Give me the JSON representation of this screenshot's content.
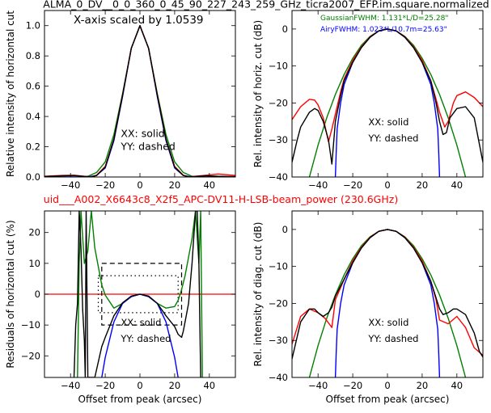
{
  "figure": {
    "title": "ALMA_0_DV__0_0_360_0_45_90_227_243_259_GHz_ticra2007_EFP.im.square.normalized",
    "subtitle": "uid___A002_X6643c8_X2f5_APC-DV11-H-LSB-beam_power (230.6GHz)",
    "colors": {
      "red": "#ff0000",
      "black": "#000000",
      "green": "#008000",
      "blue": "#0000ff"
    }
  },
  "chart_data": [
    {
      "type": "line",
      "panel": "top-left",
      "annotation": "X-axis scaled by 1.0539",
      "xlabel": "",
      "ylabel": "Relative intensity of horizontal cut",
      "xlim": [
        -55,
        55
      ],
      "ylim": [
        0,
        1.1
      ],
      "xticks": [
        -40,
        -20,
        0,
        20,
        40
      ],
      "xtick_labels": [
        "−40",
        "−20",
        "0",
        "20",
        "40"
      ],
      "yticks": [
        0,
        0.2,
        0.4,
        0.6,
        0.8,
        1.0
      ],
      "ytick_labels": [
        "0.0",
        "0.2",
        "0.4",
        "0.6",
        "0.8",
        "1.0"
      ],
      "legend_text": [
        "XX: solid",
        "YY: dashed"
      ],
      "series": [
        {
          "color": "#008000",
          "x": [
            -55,
            -35,
            -30,
            -25,
            -20,
            -15,
            -10,
            -5,
            0,
            5,
            10,
            15,
            20,
            25,
            30,
            35,
            55
          ],
          "y": [
            0,
            0,
            0.005,
            0.03,
            0.1,
            0.28,
            0.55,
            0.85,
            1.0,
            0.85,
            0.55,
            0.28,
            0.1,
            0.03,
            0.005,
            0,
            0
          ]
        },
        {
          "color": "#0000ff",
          "x": [
            -55,
            -30,
            -25,
            -20,
            -15,
            -10,
            -5,
            0,
            5,
            10,
            15,
            20,
            25,
            30,
            55
          ],
          "y": [
            0,
            0,
            0.01,
            0.06,
            0.24,
            0.53,
            0.85,
            1.0,
            0.85,
            0.53,
            0.24,
            0.06,
            0.01,
            0,
            0
          ]
        },
        {
          "color": "#ff0000",
          "x": [
            -55,
            -45,
            -38,
            -32,
            -28,
            -25,
            -20,
            -15,
            -10,
            -5,
            0,
            5,
            10,
            15,
            20,
            25,
            28,
            32,
            38,
            45,
            55
          ],
          "y": [
            0.005,
            0.01,
            0.012,
            0.005,
            0.001,
            0.012,
            0.07,
            0.25,
            0.54,
            0.85,
            1.0,
            0.85,
            0.54,
            0.25,
            0.07,
            0.012,
            0.001,
            0.005,
            0.012,
            0.02,
            0.01
          ]
        },
        {
          "color": "#000000",
          "x": [
            -55,
            -45,
            -38,
            -32,
            -28,
            -25,
            -20,
            -15,
            -10,
            -5,
            0,
            5,
            10,
            15,
            20,
            25,
            28,
            32,
            38,
            45,
            55
          ],
          "y": [
            0.003,
            0.008,
            0.01,
            0.004,
            0.001,
            0.01,
            0.065,
            0.25,
            0.54,
            0.85,
            1.0,
            0.85,
            0.54,
            0.25,
            0.065,
            0.01,
            0.001,
            0.004,
            0.008,
            0.005,
            0.003
          ]
        }
      ]
    },
    {
      "type": "line",
      "panel": "top-right",
      "xlabel": "",
      "ylabel": "Rel. intensity of horiz. cut (dB)",
      "xlim": [
        -55,
        55
      ],
      "ylim": [
        -40,
        5
      ],
      "xticks": [
        -40,
        -20,
        0,
        20,
        40
      ],
      "xtick_labels": [
        "−40",
        "−20",
        "0",
        "20",
        "40"
      ],
      "yticks": [
        -40,
        -30,
        -20,
        -10,
        0
      ],
      "ytick_labels": [
        "−40",
        "−30",
        "−20",
        "−10",
        "0"
      ],
      "legend_text": [
        "XX: solid",
        "YY: dashed"
      ],
      "fwhm_notes": [
        {
          "text": "GaussianFWHM: 1.131*L/D=25.28\"",
          "color": "#008000"
        },
        {
          "text": "AiryFWHM: 1.023*L/10.7m=25.63\"",
          "color": "#0000ff"
        }
      ],
      "series": [
        {
          "color": "#008000",
          "x": [
            -45,
            -40,
            -35,
            -30,
            -25,
            -20,
            -15,
            -10,
            -5,
            0,
            5,
            10,
            15,
            20,
            25,
            30,
            35,
            40,
            45
          ],
          "y": [
            -40,
            -31.4,
            -24,
            -17.7,
            -12.3,
            -7.9,
            -4.4,
            -2,
            -0.5,
            0,
            -0.5,
            -2,
            -4.4,
            -7.9,
            -12.3,
            -17.7,
            -24,
            -31.4,
            -40
          ]
        },
        {
          "color": "#0000ff",
          "x": [
            -30,
            -29.5,
            -29,
            -27,
            -25,
            -20,
            -15,
            -10,
            -5,
            0,
            5,
            10,
            15,
            20,
            25,
            27,
            29,
            29.5,
            30
          ],
          "y": [
            -40,
            -33,
            -27,
            -20,
            -15,
            -9,
            -5,
            -2.2,
            -0.5,
            0,
            -0.5,
            -2.2,
            -5,
            -9,
            -15,
            -20,
            -27,
            -33,
            -40
          ]
        },
        {
          "color": "#ff0000",
          "x": [
            -55,
            -50,
            -45,
            -42,
            -40,
            -37,
            -34,
            -32,
            -30,
            -27,
            -25,
            -20,
            -15,
            -10,
            -5,
            0,
            5,
            10,
            15,
            20,
            25,
            28,
            30,
            33,
            35,
            38,
            40,
            45,
            50,
            55
          ],
          "y": [
            -24.5,
            -21,
            -19,
            -19.2,
            -20.5,
            -24,
            -30.5,
            -27,
            -23,
            -17,
            -13.5,
            -8.5,
            -4.8,
            -2.1,
            -0.5,
            0,
            -0.5,
            -2.1,
            -4.8,
            -8.5,
            -14,
            -19,
            -22.5,
            -26.5,
            -25,
            -20,
            -18,
            -17,
            -18.5,
            -21
          ]
        },
        {
          "color": "#000000",
          "x": [
            -55,
            -52,
            -50,
            -45,
            -42,
            -40,
            -37,
            -34,
            -32,
            -30,
            -27,
            -25,
            -20,
            -15,
            -10,
            -5,
            0,
            5,
            10,
            15,
            20,
            25,
            28,
            30,
            32,
            34,
            36,
            40,
            45,
            50,
            55
          ],
          "y": [
            -36,
            -30,
            -26.5,
            -22.5,
            -21.5,
            -22,
            -25,
            -30,
            -36.5,
            -25,
            -18,
            -14,
            -9,
            -5,
            -2.2,
            -0.5,
            0,
            -0.5,
            -2.2,
            -5,
            -9,
            -14,
            -20,
            -25,
            -28.5,
            -28,
            -24,
            -21.5,
            -21,
            -24,
            -36
          ]
        }
      ]
    },
    {
      "type": "line",
      "panel": "bottom-left",
      "xlabel": "Offset from peak (arcsec)",
      "ylabel": "Residuals of horizontal cut (%)",
      "xlim": [
        -55,
        55
      ],
      "ylim": [
        -27,
        27
      ],
      "xticks": [
        -40,
        -20,
        0,
        20,
        40
      ],
      "xtick_labels": [
        "−40",
        "−20",
        "0",
        "20",
        "40"
      ],
      "yticks": [
        -20,
        -10,
        0,
        10,
        20
      ],
      "ytick_labels": [
        "−20",
        "−10",
        "0",
        "10",
        "20"
      ],
      "legend_text": [
        "XX: solid",
        "YY: dashed"
      ],
      "zero_line_color": "#ff0000",
      "box_dashed": {
        "x": [
          -22,
          24
        ],
        "y": [
          -10,
          10
        ]
      },
      "box_dotted": {
        "x": [
          -24,
          22
        ],
        "y": [
          -6,
          6
        ]
      },
      "series": [
        {
          "color": "#008000",
          "x": [
            -36,
            -35,
            -34,
            -32,
            -30,
            -28,
            -26,
            -24,
            -22,
            -20,
            -15,
            -10,
            -5,
            0,
            5,
            10,
            15,
            20,
            22,
            24,
            26,
            28,
            30,
            32,
            34,
            35,
            36
          ],
          "y": [
            -27,
            10,
            27,
            10,
            14,
            27,
            15,
            9,
            3,
            -0.3,
            -4.5,
            -3,
            -0.8,
            0,
            -0.8,
            -3,
            -4.5,
            -4,
            -2,
            1.5,
            6,
            12,
            18,
            27,
            10,
            27,
            -27
          ]
        },
        {
          "color": "#0000ff",
          "x": [
            -22,
            -20,
            -15,
            -10,
            -5,
            0,
            5,
            10,
            15,
            20,
            22
          ],
          "y": [
            -27,
            -20.5,
            -9,
            -3,
            -0.8,
            0,
            -0.8,
            -3,
            -9,
            -20.5,
            -27
          ]
        },
        {
          "color": "#000000",
          "x": [
            -38,
            -37,
            -36,
            -35,
            -34,
            -33,
            -32,
            -31.5,
            -31,
            -30,
            -26,
            -22,
            -20,
            -15,
            -10,
            -5,
            0,
            5,
            10,
            15,
            20,
            22,
            24,
            25,
            26,
            28,
            30,
            32,
            33,
            34,
            35
          ],
          "y": [
            -27,
            -10,
            -3,
            27,
            15,
            -5,
            -15,
            -27,
            27,
            -27,
            -27,
            -17,
            -14,
            -7,
            -2.8,
            -0.6,
            0,
            -0.6,
            -3,
            -7,
            -10.5,
            -13,
            -14,
            -12,
            -9,
            -3,
            10,
            27,
            27,
            10,
            -27
          ]
        }
      ]
    },
    {
      "type": "line",
      "panel": "bottom-right",
      "xlabel": "Offset from peak (arcsec)",
      "ylabel": "Rel. intensity of diag. cut (dB)",
      "xlim": [
        -55,
        55
      ],
      "ylim": [
        -40,
        5
      ],
      "xticks": [
        -40,
        -20,
        0,
        20,
        40
      ],
      "xtick_labels": [
        "−40",
        "−20",
        "0",
        "20",
        "40"
      ],
      "yticks": [
        -40,
        -30,
        -20,
        -10,
        0
      ],
      "ytick_labels": [
        "−40",
        "−30",
        "−20",
        "−10",
        "0"
      ],
      "legend_text": [
        "XX: solid",
        "YY: dashed"
      ],
      "series": [
        {
          "color": "#008000",
          "x": [
            -45,
            -40,
            -35,
            -30,
            -25,
            -20,
            -15,
            -10,
            -5,
            0,
            5,
            10,
            15,
            20,
            25,
            30,
            35,
            40,
            45
          ],
          "y": [
            -40,
            -31.4,
            -24,
            -17.7,
            -12.3,
            -7.9,
            -4.4,
            -2,
            -0.5,
            0,
            -0.5,
            -2,
            -4.4,
            -7.9,
            -12.3,
            -17.7,
            -24,
            -31.4,
            -40
          ]
        },
        {
          "color": "#0000ff",
          "x": [
            -30,
            -29.5,
            -29,
            -27,
            -25,
            -20,
            -15,
            -10,
            -5,
            0,
            5,
            10,
            15,
            20,
            25,
            27,
            29,
            29.5,
            30
          ],
          "y": [
            -40,
            -33,
            -27,
            -20,
            -15,
            -9,
            -5,
            -2.2,
            -0.5,
            0,
            -0.5,
            -2.2,
            -5,
            -9,
            -15,
            -20,
            -27,
            -33,
            -40
          ]
        },
        {
          "color": "#ff0000",
          "x": [
            -55,
            -50,
            -45,
            -40,
            -36,
            -32,
            -30,
            -25,
            -20,
            -15,
            -10,
            -5,
            0,
            5,
            10,
            15,
            20,
            25,
            28,
            30,
            35,
            40,
            45,
            50,
            55
          ],
          "y": [
            -31,
            -23.5,
            -21.5,
            -22.5,
            -24,
            -26.5,
            -19,
            -13.5,
            -8.5,
            -4.8,
            -2.1,
            -0.5,
            0,
            -0.5,
            -2.1,
            -4.8,
            -8.5,
            -14,
            -19,
            -24.5,
            -25.5,
            -23.5,
            -26.5,
            -32,
            -34
          ]
        },
        {
          "color": "#000000",
          "x": [
            -55,
            -52,
            -50,
            -45,
            -42,
            -40,
            -37,
            -34,
            -32,
            -30,
            -25,
            -20,
            -15,
            -10,
            -5,
            0,
            5,
            10,
            15,
            20,
            25,
            28,
            30,
            32,
            35,
            38,
            40,
            45,
            50,
            53,
            55
          ],
          "y": [
            -35,
            -29,
            -25,
            -21.5,
            -21.5,
            -22.5,
            -23.5,
            -22.5,
            -21,
            -18,
            -13.5,
            -9,
            -5,
            -2.2,
            -0.5,
            0,
            -0.5,
            -2.2,
            -5,
            -9,
            -14,
            -18.5,
            -21.5,
            -23,
            -22.5,
            -21.5,
            -21.5,
            -23,
            -28,
            -33,
            -34.5
          ]
        }
      ]
    }
  ]
}
